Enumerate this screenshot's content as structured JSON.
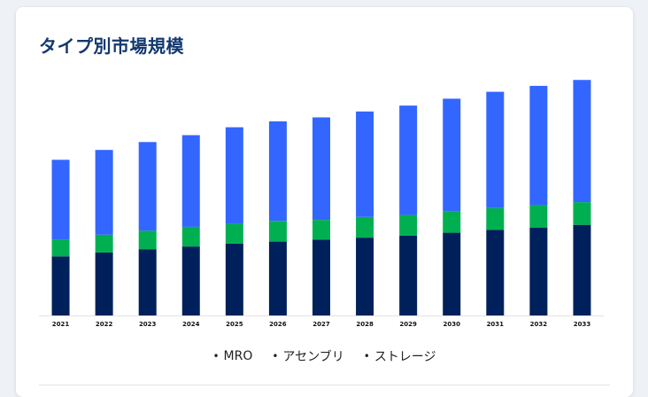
{
  "title": "タイプ別市場規模",
  "chart_data": {
    "type": "bar",
    "stacked": true,
    "title": "タイプ別市場規模",
    "categories": [
      "2021",
      "2022",
      "2023",
      "2024",
      "2025",
      "2026",
      "2027",
      "2028",
      "2029",
      "2030",
      "2031",
      "2032",
      "2033"
    ],
    "series": [
      {
        "name": "MRO",
        "color": "#00205c",
        "values": [
          60,
          64,
          67,
          70,
          73,
          75,
          77,
          79,
          81,
          84,
          87,
          89,
          92
        ]
      },
      {
        "name": "アセンブリ",
        "color": "#00b050",
        "values": [
          17,
          18,
          19,
          20,
          20,
          21,
          20,
          21,
          21,
          22,
          22,
          23,
          23
        ]
      },
      {
        "name": "ストレージ",
        "color": "#3366ff",
        "values": [
          81,
          86,
          90,
          93,
          98,
          101,
          104,
          107,
          111,
          114,
          118,
          121,
          124
        ]
      }
    ],
    "ylim": [
      0,
      250
    ],
    "legend_position": "bottom"
  }
}
